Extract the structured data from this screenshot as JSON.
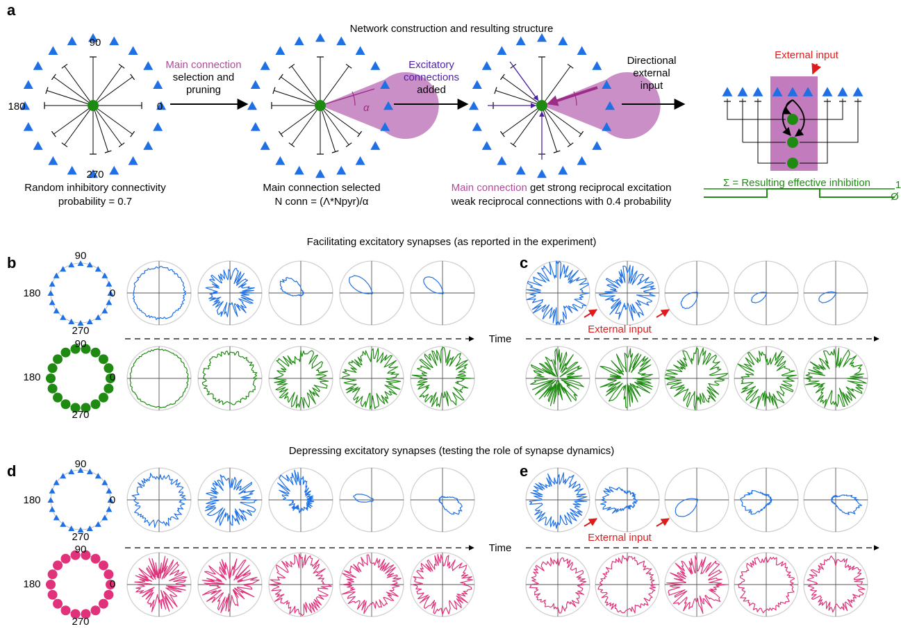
{
  "colors": {
    "blue": "#1f6fe5",
    "green": "#1e8a12",
    "pink": "#e0317a",
    "purple": "#b04a9c",
    "violet": "#4b1fa8",
    "red": "#e11b1b",
    "shade": "#c27bbd"
  },
  "panel_a": {
    "letter": "a",
    "title": "Network construction and resulting structure",
    "angles": {
      "top": "90",
      "left": "180",
      "right": "0",
      "bottom": "270"
    },
    "step1": {
      "label_colored": "Main connection",
      "label_rest1": "selection and",
      "label_rest2": "pruning"
    },
    "step2": {
      "label_colored1": "Excitatory",
      "label_colored2": "connections",
      "label_rest": "added"
    },
    "step3": {
      "label1": "Directional",
      "label2": "external",
      "label3": "input"
    },
    "alpha_symbol": "α",
    "caption1_line1": "Random inhibitory connectivity",
    "caption1_line2": "probability = 0.7",
    "caption2_line1": "Main connection selected",
    "caption2_line2": "N conn = (Λ*Npyr)/α",
    "caption3_line1_colored": "Main connection",
    "caption3_line1_rest": " get strong reciprocal excitation",
    "caption3_line2": "weak reciprocal connections with 0.4 probability",
    "external_input": "External input",
    "sum_label": "Σ = Resulting effective inhibition",
    "sum_axis_top": "1",
    "sum_axis_bottom": "Ø"
  },
  "panel_b": {
    "letter": "b",
    "title": "Facilitating excitatory synapses (as reported in the experiment)"
  },
  "panel_c": {
    "letter": "c",
    "external_input": "External input"
  },
  "panel_d": {
    "letter": "d",
    "title": "Depressing excitatory synapses (testing the role of synapse dynamics)"
  },
  "panel_e": {
    "letter": "e",
    "external_input": "External input"
  },
  "time_label": "Time",
  "polar_angles": {
    "top": "90",
    "left": "180",
    "right": "0",
    "bottom": "270"
  }
}
